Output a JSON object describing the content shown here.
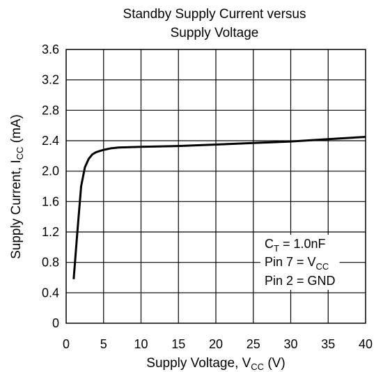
{
  "chart_data": {
    "type": "line",
    "title_line1": "Standby Supply Current versus",
    "title_line2": "Supply Voltage",
    "xlabel": {
      "prefix": "Supply Voltage, V",
      "sub": "CC",
      "suffix": " (V)"
    },
    "ylabel": {
      "prefix": "Supply Current, I",
      "sub": "CC",
      "suffix": " (mA)"
    },
    "xlim": [
      0,
      40
    ],
    "ylim": [
      0,
      3.6
    ],
    "xticks": [
      "0",
      "5",
      "10",
      "15",
      "20",
      "25",
      "30",
      "35",
      "40"
    ],
    "yticks": [
      "0",
      "0.4",
      "0.8",
      "1.2",
      "1.6",
      "2.0",
      "2.4",
      "2.8",
      "3.2",
      "3.6"
    ],
    "grid": true,
    "series": [
      {
        "x": [
          1.0,
          1.5,
          2.0,
          2.5,
          3.0,
          3.5,
          4.0,
          5.0,
          6.0,
          7.0,
          10,
          15,
          20,
          25,
          30,
          35,
          40
        ],
        "y": [
          0.58,
          1.2,
          1.8,
          2.05,
          2.16,
          2.22,
          2.25,
          2.28,
          2.3,
          2.31,
          2.32,
          2.33,
          2.35,
          2.37,
          2.39,
          2.42,
          2.45
        ]
      }
    ],
    "annotation": {
      "line1": {
        "prefix": "C",
        "sub": "T",
        "suffix": " = 1.0nF"
      },
      "line2": {
        "prefix": "Pin 7 = V",
        "sub": "CC",
        "suffix": ""
      },
      "line3": {
        "text": "Pin 2 = GND"
      }
    },
    "colors": {
      "line": "#000000",
      "grid": "#000000",
      "background": "#ffffff"
    }
  }
}
